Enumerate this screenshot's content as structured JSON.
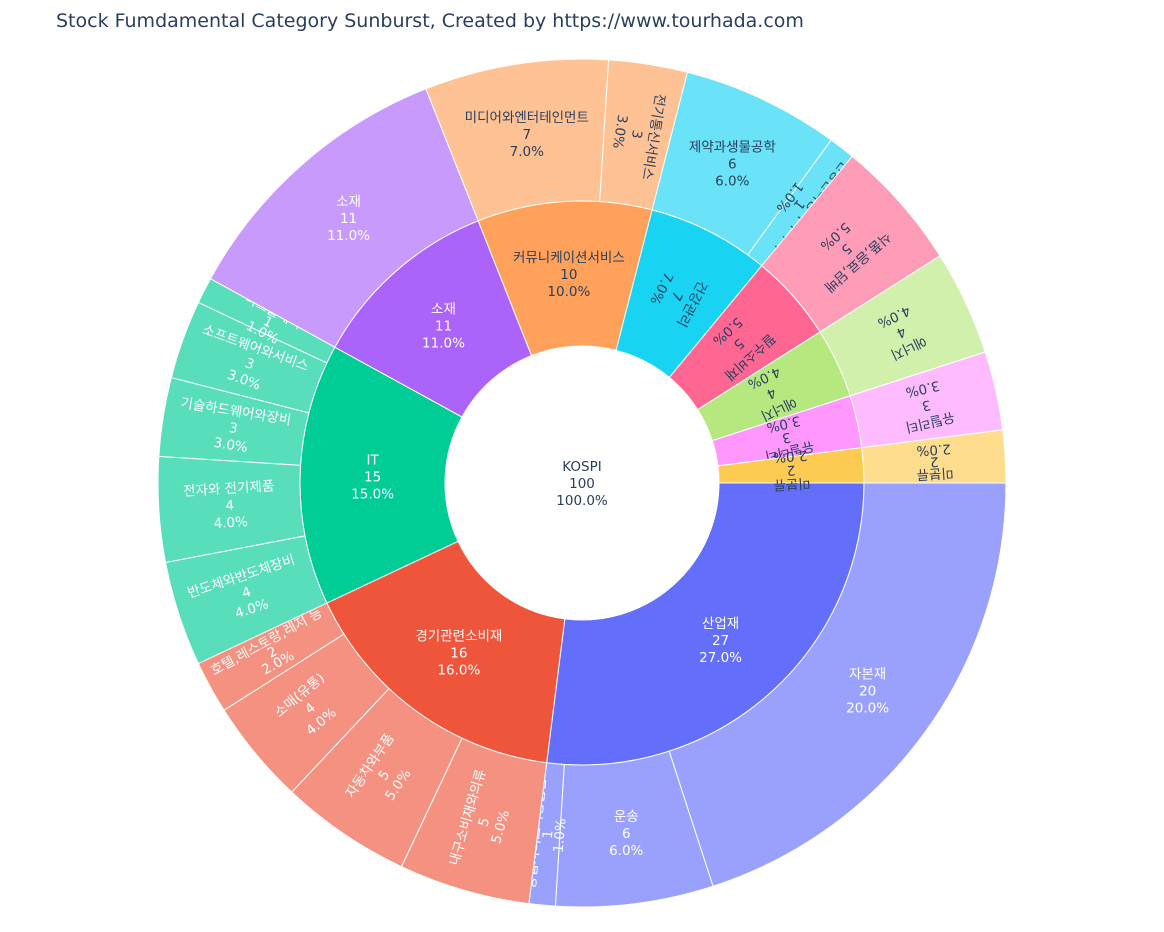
{
  "title": "Stock Fumdamental Category Sunburst, Created by https://www.tourhada.com",
  "chart_data": {
    "type": "sunburst",
    "title": "Stock Fumdamental Category Sunburst, Created by https://www.tourhada.com",
    "root": {
      "label": "KOSPI",
      "value": 100,
      "percent": "100.0%"
    },
    "sectors": [
      {
        "label": "산업재",
        "value": 27,
        "percent": "27.0%",
        "color": "#636efa",
        "children": [
          {
            "label": "자본재",
            "value": 20,
            "percent": "20.0%"
          },
          {
            "label": "운송",
            "value": 6,
            "percent": "6.0%"
          },
          {
            "label": "상업서비스와공급품",
            "value": 1,
            "percent": "1.0%"
          }
        ]
      },
      {
        "label": "경기관련소비재",
        "value": 16,
        "percent": "16.0%",
        "color": "#ef553b",
        "children": [
          {
            "label": "내구소비재와의류",
            "value": 5,
            "percent": "5.0%"
          },
          {
            "label": "자동차와부품",
            "value": 5,
            "percent": "5.0%"
          },
          {
            "label": "소매(유통)",
            "value": 4,
            "percent": "4.0%"
          },
          {
            "label": "호텔,레스토랑,레저 등",
            "value": 2,
            "percent": "2.0%"
          }
        ]
      },
      {
        "label": "IT",
        "value": 15,
        "percent": "15.0%",
        "color": "#00cc96",
        "children": [
          {
            "label": "반도체와반도체장비",
            "value": 4,
            "percent": "4.0%"
          },
          {
            "label": "전자와 전기제품",
            "value": 4,
            "percent": "4.0%"
          },
          {
            "label": "기술하드웨어와장비",
            "value": 3,
            "percent": "3.0%"
          },
          {
            "label": "소프트웨어와서비스",
            "value": 3,
            "percent": "3.0%"
          },
          {
            "label": "디스플레이",
            "value": 1,
            "percent": "1.0%"
          }
        ]
      },
      {
        "label": "소재",
        "value": 11,
        "percent": "11.0%",
        "color": "#ab63fa",
        "children": [
          {
            "label": "소재",
            "value": 11,
            "percent": "11.0%"
          }
        ]
      },
      {
        "label": "커뮤니케이션서비스",
        "value": 10,
        "percent": "10.0%",
        "color": "#ffa15a",
        "children": [
          {
            "label": "미디어와엔터테인먼트",
            "value": 7,
            "percent": "7.0%"
          },
          {
            "label": "전기통신서비스",
            "value": 3,
            "percent": "3.0%"
          }
        ]
      },
      {
        "label": "건강관리",
        "value": 7,
        "percent": "7.0%",
        "color": "#19d3f3",
        "children": [
          {
            "label": "제약과생물공학",
            "value": 6,
            "percent": "6.0%"
          },
          {
            "label": "건강관리장비와서비스",
            "value": 1,
            "percent": "1.0%"
          }
        ]
      },
      {
        "label": "필수소비재",
        "value": 5,
        "percent": "5.0%",
        "color": "#ff6692",
        "children": [
          {
            "label": "식품,음료,담배",
            "value": 5,
            "percent": "5.0%"
          }
        ]
      },
      {
        "label": "에너지",
        "value": 4,
        "percent": "4.0%",
        "color": "#b6e880",
        "children": [
          {
            "label": "에너지",
            "value": 4,
            "percent": "4.0%"
          }
        ]
      },
      {
        "label": "유틸리티",
        "value": 3,
        "percent": "3.0%",
        "color": "#ff97ff",
        "children": [
          {
            "label": "유틸리티",
            "value": 3,
            "percent": "3.0%"
          }
        ]
      },
      {
        "label": "미분류",
        "value": 2,
        "percent": "2.0%",
        "color": "#fecb52",
        "children": [
          {
            "label": "미분류",
            "value": 2,
            "percent": "2.0%"
          }
        ]
      }
    ]
  }
}
